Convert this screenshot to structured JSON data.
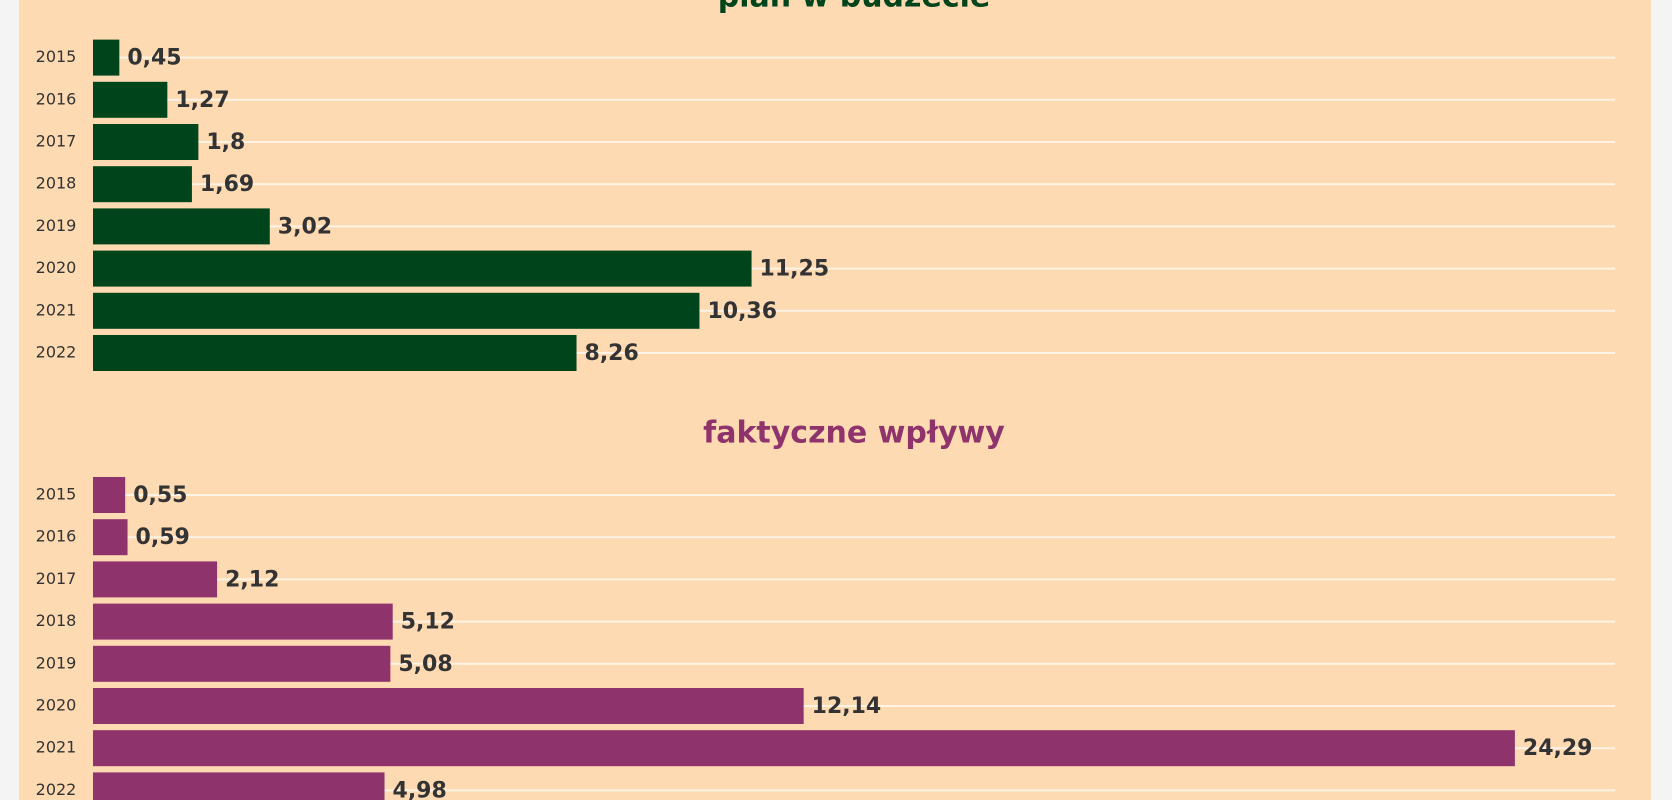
{
  "chart_data": [
    {
      "type": "bar",
      "orientation": "horizontal",
      "title": "plan w budżecie",
      "color": "#00441b",
      "categories": [
        "2015",
        "2016",
        "2017",
        "2018",
        "2019",
        "2020",
        "2021",
        "2022"
      ],
      "values": [
        0.45,
        1.27,
        1.8,
        1.69,
        3.02,
        11.25,
        10.36,
        8.26
      ],
      "value_labels": [
        "0,45",
        "1,27",
        "1,8",
        "1,69",
        "3,02",
        "11,25",
        "10,36",
        "8,26"
      ],
      "xlim": [
        0,
        26
      ],
      "grid": true
    },
    {
      "type": "bar",
      "orientation": "horizontal",
      "title": "faktyczne wpływy",
      "color": "#8e336b",
      "categories": [
        "2015",
        "2016",
        "2017",
        "2018",
        "2019",
        "2020",
        "2021",
        "2022"
      ],
      "values": [
        0.55,
        0.59,
        2.12,
        5.12,
        5.08,
        12.14,
        24.29,
        4.98
      ],
      "value_labels": [
        "0,55",
        "0,59",
        "2,12",
        "5,12",
        "5,08",
        "12,14",
        "24,29",
        "4,98"
      ],
      "xlim": [
        0,
        26
      ],
      "grid": true
    }
  ]
}
